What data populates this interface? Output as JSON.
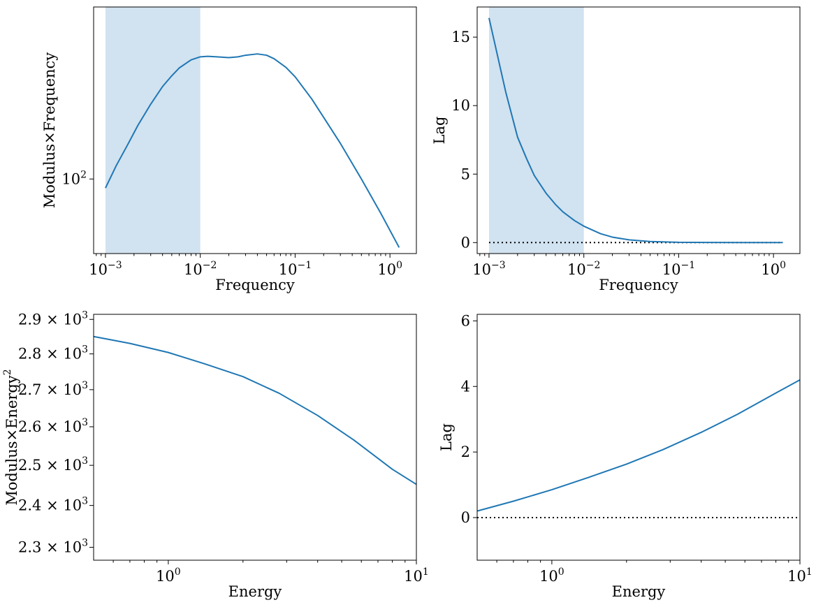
{
  "colors": {
    "line": "#1f77b4",
    "shade": "#c6dbec",
    "zero_line": "#000000",
    "axes": "#000000"
  },
  "chart_data": [
    {
      "type": "line",
      "id": "modulus-frequency",
      "xlabel": "Frequency",
      "ylabel": "Modulus×Frequency",
      "xscale": "log",
      "yscale": "log",
      "xlim": [
        0.00075,
        1.9
      ],
      "ylim": [
        46,
        600
      ],
      "grid": false,
      "shaded_region": {
        "x0": 0.001,
        "x1": 0.01
      },
      "x_ticks": [
        {
          "value": 0.001,
          "base": "10",
          "exp": "−3"
        },
        {
          "value": 0.01,
          "base": "10",
          "exp": "−2"
        },
        {
          "value": 0.1,
          "base": "10",
          "exp": "−1"
        },
        {
          "value": 1,
          "base": "10",
          "exp": "0"
        }
      ],
      "y_ticks": [
        {
          "value": 100,
          "base": "10",
          "exp": "2"
        }
      ],
      "series": [
        {
          "x": [
            0.001,
            0.0013,
            0.0017,
            0.0022,
            0.003,
            0.004,
            0.005,
            0.006,
            0.008,
            0.01,
            0.012,
            0.015,
            0.02,
            0.025,
            0.03,
            0.04,
            0.05,
            0.06,
            0.08,
            0.1,
            0.15,
            0.2,
            0.3,
            0.5,
            0.8,
            1.25
          ],
          "y": [
            91,
            115,
            142,
            175,
            218,
            262,
            293,
            318,
            346,
            357,
            359,
            357,
            354,
            357,
            363,
            368,
            363,
            350,
            320,
            290,
            230,
            190,
            145,
            100,
            70,
            49
          ]
        }
      ]
    },
    {
      "type": "line",
      "id": "lag-frequency",
      "xlabel": "Frequency",
      "ylabel": "Lag",
      "xscale": "log",
      "yscale": "linear",
      "xlim": [
        0.00075,
        1.9
      ],
      "ylim": [
        -0.8,
        17.2
      ],
      "grid": false,
      "shaded_region": {
        "x0": 0.001,
        "x1": 0.01
      },
      "zero_line": 0,
      "x_ticks": [
        {
          "value": 0.001,
          "base": "10",
          "exp": "−3"
        },
        {
          "value": 0.01,
          "base": "10",
          "exp": "−2"
        },
        {
          "value": 0.1,
          "base": "10",
          "exp": "−1"
        },
        {
          "value": 1,
          "base": "10",
          "exp": "0"
        }
      ],
      "y_ticks": [
        {
          "value": 0,
          "label": "0"
        },
        {
          "value": 5,
          "label": "5"
        },
        {
          "value": 10,
          "label": "10"
        },
        {
          "value": 15,
          "label": "15"
        }
      ],
      "series": [
        {
          "x": [
            0.001,
            0.0015,
            0.002,
            0.0025,
            0.003,
            0.004,
            0.005,
            0.006,
            0.008,
            0.01,
            0.015,
            0.02,
            0.03,
            0.05,
            0.1,
            0.2,
            0.5,
            1.25
          ],
          "y": [
            16.4,
            11.0,
            7.7,
            6.1,
            4.9,
            3.6,
            2.8,
            2.25,
            1.6,
            1.2,
            0.65,
            0.4,
            0.2,
            0.08,
            0.02,
            0.01,
            0.0,
            0.0
          ]
        }
      ]
    },
    {
      "type": "line",
      "id": "modulus-energy",
      "xlabel": "Energy",
      "ylabel": "Modulus×Energy",
      "ylabel_sup": "2",
      "xscale": "log",
      "yscale": "log",
      "xlim": [
        0.5,
        10
      ],
      "ylim": [
        2270,
        2915
      ],
      "grid": false,
      "x_ticks": [
        {
          "value": 1,
          "base": "10",
          "exp": "0"
        },
        {
          "value": 10,
          "base": "10",
          "exp": "1"
        }
      ],
      "y_ticks": [
        {
          "value": 2300,
          "mant": "2.3 × 10",
          "exp": "3"
        },
        {
          "value": 2400,
          "mant": "2.4 × 10",
          "exp": "3"
        },
        {
          "value": 2500,
          "mant": "2.5 × 10",
          "exp": "3"
        },
        {
          "value": 2600,
          "mant": "2.6 × 10",
          "exp": "3"
        },
        {
          "value": 2700,
          "mant": "2.7 × 10",
          "exp": "3"
        },
        {
          "value": 2800,
          "mant": "2.8 × 10",
          "exp": "3"
        },
        {
          "value": 2900,
          "mant": "2.9 × 10",
          "exp": "3"
        }
      ],
      "series": [
        {
          "x": [
            0.5,
            0.7,
            1,
            1.4,
            2,
            2.8,
            4,
            5.6,
            8,
            10
          ],
          "y": [
            2850,
            2830,
            2804,
            2772,
            2736,
            2690,
            2630,
            2565,
            2490,
            2452
          ]
        }
      ]
    },
    {
      "type": "line",
      "id": "lag-energy",
      "xlabel": "Energy",
      "ylabel": "Lag",
      "xscale": "log",
      "yscale": "linear",
      "xlim": [
        0.5,
        10
      ],
      "ylim": [
        -1.3,
        6.2
      ],
      "grid": false,
      "zero_line": 0,
      "x_ticks": [
        {
          "value": 1,
          "base": "10",
          "exp": "0"
        },
        {
          "value": 10,
          "base": "10",
          "exp": "1"
        }
      ],
      "y_ticks": [
        {
          "value": 0,
          "label": "0"
        },
        {
          "value": 2,
          "label": "2"
        },
        {
          "value": 4,
          "label": "4"
        },
        {
          "value": 6,
          "label": "6"
        }
      ],
      "series": [
        {
          "x": [
            0.5,
            0.7,
            1,
            1.4,
            2,
            2.8,
            4,
            5.6,
            8,
            10
          ],
          "y": [
            0.2,
            0.5,
            0.85,
            1.22,
            1.63,
            2.07,
            2.6,
            3.15,
            3.8,
            4.2
          ]
        }
      ]
    }
  ]
}
